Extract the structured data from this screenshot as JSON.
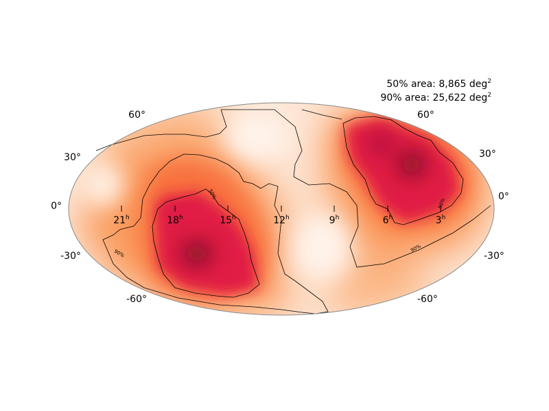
{
  "map": {
    "projection": "Mollweide",
    "area_50": "50% area: 8,865 deg",
    "area_90": "90% area: 25,622 deg",
    "area_unit_sup": "2",
    "dec_labels": {
      "p60_left": "60°",
      "p60_right": "60°",
      "p30_left": "30°",
      "p30_right": "30°",
      "zero_left": "0°",
      "zero_right": "0°",
      "m30_left": "-30°",
      "m30_right": "-30°",
      "m60_left": "-60°",
      "m60_right": "-60°"
    },
    "ra_labels": [
      {
        "value": "21",
        "sup": "h"
      },
      {
        "value": "18",
        "sup": "h"
      },
      {
        "value": "15",
        "sup": "h"
      },
      {
        "value": "12",
        "sup": "h"
      },
      {
        "value": "9",
        "sup": "h"
      },
      {
        "value": "6",
        "sup": "h"
      },
      {
        "value": "3",
        "sup": "h"
      }
    ],
    "contour_labels": {
      "c50_a": "50%",
      "c50_b": "50%",
      "c90_a": "90%",
      "c90_b": "90%"
    },
    "colors": {
      "low": "#ffffff",
      "mid_low": "#fdbf8a",
      "mid": "#f86a3a",
      "high": "#e0123a",
      "peak": "#5a0012",
      "outline": "#888888"
    }
  }
}
